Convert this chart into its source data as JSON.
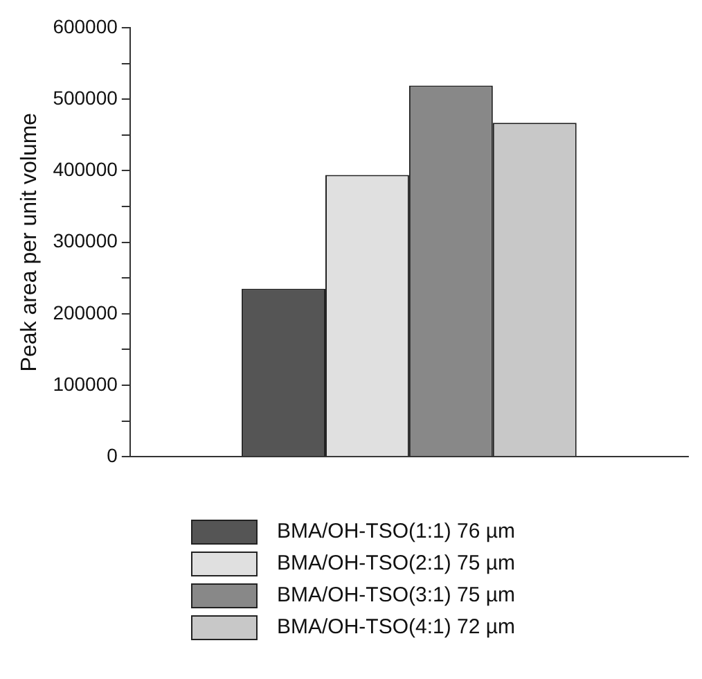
{
  "chart_data": {
    "type": "bar",
    "ylabel": "Peak area per unit volume",
    "categories": [
      null
    ],
    "series": [
      {
        "name": "BMA/OH-TSO(1:1) 76 µm",
        "color": "#555555",
        "values": [
          235000
        ]
      },
      {
        "name": "BMA/OH-TSO(2:1) 75 µm",
        "color": "#e0e0e0",
        "values": [
          394000
        ]
      },
      {
        "name": "BMA/OH-TSO(3:1) 75 µm",
        "color": "#888888",
        "values": [
          519000
        ]
      },
      {
        "name": "BMA/OH-TSO(4:1) 72 µm",
        "color": "#c8c8c8",
        "values": [
          467000
        ]
      }
    ],
    "ylim": [
      0,
      600000
    ],
    "yticks": [
      0,
      {
        "value": 50000,
        "label": null
      },
      100000,
      {
        "value": 150000,
        "label": null
      },
      200000,
      {
        "value": 250000,
        "label": null
      },
      300000,
      {
        "value": 350000,
        "label": null
      },
      400000,
      {
        "value": 450000,
        "label": null
      },
      500000,
      {
        "value": 550000,
        "label": null
      },
      600000
    ],
    "grid": false,
    "legend": "bottom"
  }
}
